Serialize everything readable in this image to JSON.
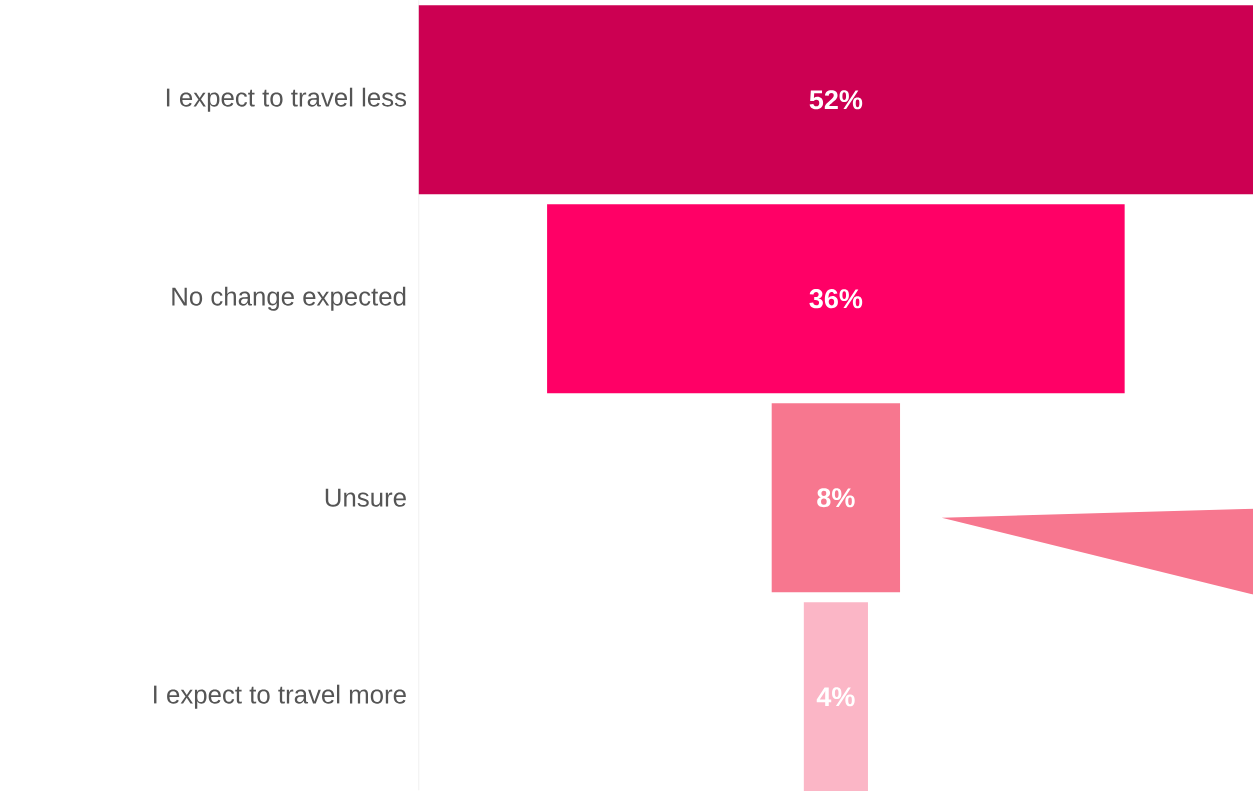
{
  "chart_data": {
    "type": "other",
    "categories": [
      "I expect to travel less",
      "No change expected",
      "Unsure",
      "I expect to travel more"
    ],
    "values": [
      52,
      36,
      8,
      4
    ],
    "colors": [
      "#cc0052",
      "#ff0066",
      "#f7778f",
      "#fbb6c6"
    ],
    "value_labels": [
      "52%",
      "36%",
      "8%",
      "4%"
    ]
  }
}
